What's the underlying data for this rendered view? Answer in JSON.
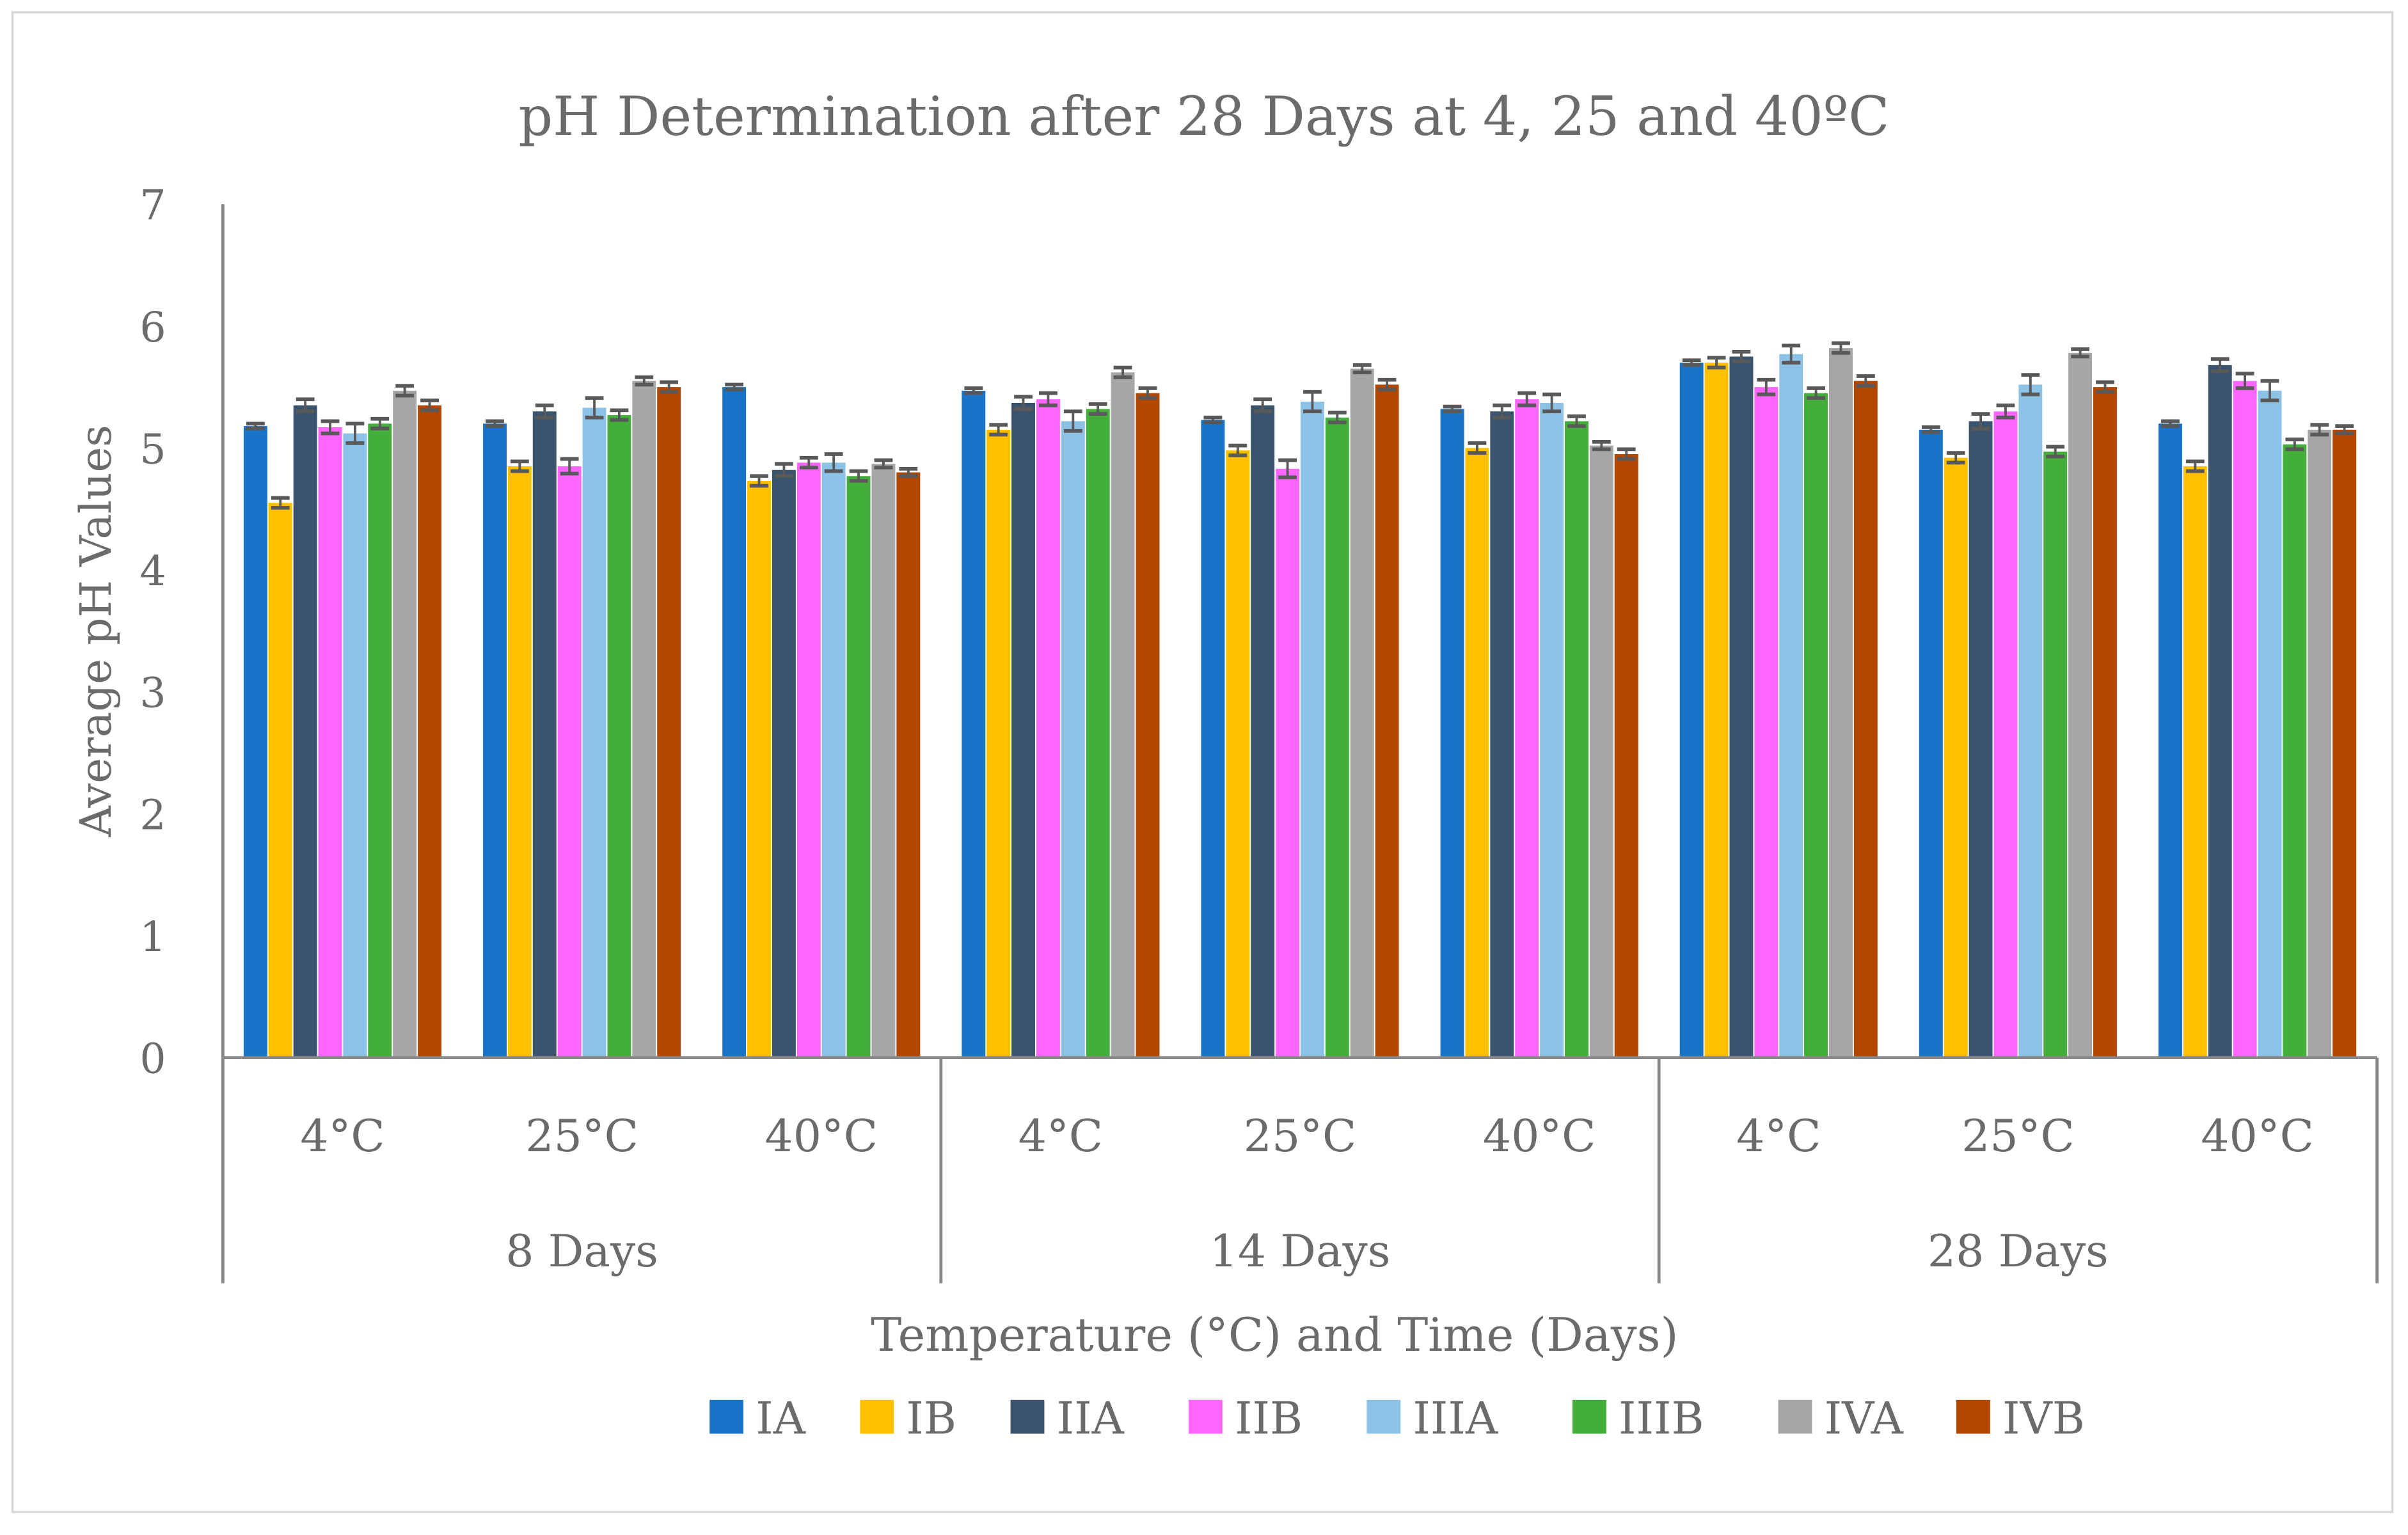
{
  "chart_data": {
    "type": "bar",
    "title": "pH Determination after 28 Days at 4, 25 and 40ºC",
    "xlabel": "Temperature (°C) and Time (Days)",
    "ylabel": "Average pH Values",
    "ylim": [
      0,
      7
    ],
    "yticks": [
      "0",
      "1",
      "2",
      "3",
      "4",
      "5",
      "6",
      "7"
    ],
    "grid": false,
    "legend_position": "bottom",
    "day_groups": [
      "8 Days",
      "14 Days",
      "28 Days"
    ],
    "categories": [
      "4°C",
      "25°C",
      "40°C",
      "4°C",
      "25°C",
      "40°C",
      "4°C",
      "25°C",
      "40°C"
    ],
    "series": [
      {
        "name": "IA",
        "color": "#1874c8",
        "values": [
          5.18,
          5.2,
          5.5,
          5.47,
          5.23,
          5.32,
          5.7,
          5.15,
          5.2
        ],
        "errors": [
          0.02,
          0.02,
          0.02,
          0.02,
          0.02,
          0.02,
          0.02,
          0.02,
          0.02
        ]
      },
      {
        "name": "IB",
        "color": "#ffc000",
        "values": [
          4.55,
          4.85,
          4.73,
          5.15,
          4.98,
          5.0,
          5.7,
          4.92,
          4.85
        ],
        "errors": [
          0.04,
          0.04,
          0.04,
          0.04,
          0.04,
          0.04,
          0.04,
          0.04,
          0.04
        ]
      },
      {
        "name": "IIA",
        "color": "#3b546e",
        "values": [
          5.35,
          5.3,
          4.82,
          5.37,
          5.35,
          5.3,
          5.75,
          5.22,
          5.68
        ],
        "errors": [
          0.05,
          0.05,
          0.05,
          0.05,
          0.05,
          0.05,
          0.04,
          0.06,
          0.05
        ]
      },
      {
        "name": "IIB",
        "color": "#ff66ff",
        "values": [
          5.17,
          4.85,
          4.88,
          5.4,
          4.83,
          5.4,
          5.5,
          5.3,
          5.55
        ],
        "errors": [
          0.05,
          0.06,
          0.04,
          0.05,
          0.07,
          0.05,
          0.06,
          0.05,
          0.06
        ]
      },
      {
        "name": "IIIA",
        "color": "#8cc2e6",
        "values": [
          5.12,
          5.33,
          4.88,
          5.22,
          5.38,
          5.37,
          5.77,
          5.52,
          5.47
        ],
        "errors": [
          0.08,
          0.08,
          0.07,
          0.08,
          0.08,
          0.07,
          0.07,
          0.08,
          0.08
        ]
      },
      {
        "name": "IIIB",
        "color": "#44ae3b",
        "values": [
          5.2,
          5.27,
          4.77,
          5.32,
          5.25,
          5.22,
          5.45,
          4.97,
          5.03
        ],
        "errors": [
          0.04,
          0.04,
          0.04,
          0.04,
          0.04,
          0.04,
          0.04,
          0.04,
          0.04
        ]
      },
      {
        "name": "IVA",
        "color": "#a6a6a6",
        "values": [
          5.47,
          5.55,
          4.87,
          5.62,
          5.65,
          5.02,
          5.82,
          5.78,
          5.15
        ],
        "errors": [
          0.04,
          0.03,
          0.03,
          0.04,
          0.03,
          0.03,
          0.04,
          0.03,
          0.04
        ]
      },
      {
        "name": "IVB",
        "color": "#b34700",
        "values": [
          5.35,
          5.5,
          4.8,
          5.45,
          5.52,
          4.95,
          5.55,
          5.5,
          5.15
        ],
        "errors": [
          0.04,
          0.04,
          0.03,
          0.04,
          0.04,
          0.04,
          0.04,
          0.04,
          0.03
        ]
      }
    ]
  }
}
